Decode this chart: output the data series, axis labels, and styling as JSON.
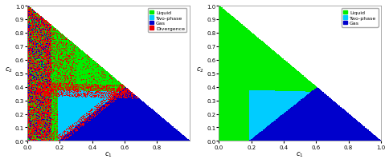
{
  "left_plot": {
    "xlabel": "$c_1$",
    "ylabel": "$c_2$",
    "xticks": [
      0,
      0.2,
      0.4,
      0.6,
      0.8
    ],
    "yticks": [
      0,
      0.1,
      0.2,
      0.3,
      0.4,
      0.5,
      0.6,
      0.7,
      0.8,
      0.9,
      1
    ],
    "legend_items": [
      {
        "label": "Liquid",
        "color": "#00EE00"
      },
      {
        "label": "Two-phase",
        "color": "#00CCFF"
      },
      {
        "label": "Gas",
        "color": "#0000CC"
      },
      {
        "label": "Divergence",
        "color": "#EE0000"
      }
    ]
  },
  "right_plot": {
    "xlabel": "$c_1$",
    "ylabel": "$c_2$",
    "xticks": [
      0,
      0.2,
      0.4,
      0.6,
      0.8,
      1.0
    ],
    "yticks": [
      0,
      0.1,
      0.2,
      0.3,
      0.4,
      0.5,
      0.6,
      0.7,
      0.8,
      0.9,
      1
    ],
    "legend_items": [
      {
        "label": "Liquid",
        "color": "#00EE00"
      },
      {
        "label": "Two-phase",
        "color": "#00CCFF"
      },
      {
        "label": "Gas",
        "color": "#0000CC"
      }
    ]
  },
  "liq_color": [
    0.0,
    0.93,
    0.0
  ],
  "tp_color": [
    0.0,
    0.8,
    1.0
  ],
  "gas_color": [
    0.0,
    0.0,
    0.8
  ],
  "div_color": [
    0.93,
    0.0,
    0.0
  ],
  "bg_color": [
    1.0,
    1.0,
    1.0
  ],
  "figsize": [
    4.85,
    2.05
  ],
  "dpi": 100,
  "grid_n": 300
}
